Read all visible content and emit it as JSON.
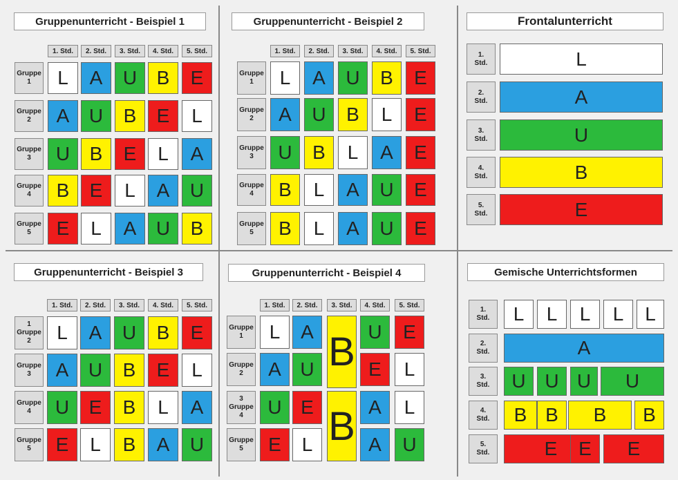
{
  "colors": {
    "W": "#ffffff",
    "B": "#2b9fe0",
    "G": "#2cba3c",
    "Y": "#fff200",
    "R": "#ee1c1c"
  },
  "column_labels": [
    "1. Std.",
    "2. Std.",
    "3. Std.",
    "4. Std.",
    "5. Std."
  ],
  "panel1": {
    "title": "Gruppenunterricht - Beispiel 1",
    "rows": [
      {
        "label": "Gruppe\n1",
        "cells": [
          [
            "L",
            "W"
          ],
          [
            "A",
            "B"
          ],
          [
            "U",
            "G"
          ],
          [
            "B",
            "Y"
          ],
          [
            "E",
            "R"
          ]
        ]
      },
      {
        "label": "Gruppe\n2",
        "cells": [
          [
            "A",
            "B"
          ],
          [
            "U",
            "G"
          ],
          [
            "B",
            "Y"
          ],
          [
            "E",
            "R"
          ],
          [
            "L",
            "W"
          ]
        ]
      },
      {
        "label": "Gruppe\n3",
        "cells": [
          [
            "U",
            "G"
          ],
          [
            "B",
            "Y"
          ],
          [
            "E",
            "R"
          ],
          [
            "L",
            "W"
          ],
          [
            "A",
            "B"
          ]
        ]
      },
      {
        "label": "Gruppe\n4",
        "cells": [
          [
            "B",
            "Y"
          ],
          [
            "E",
            "R"
          ],
          [
            "L",
            "W"
          ],
          [
            "A",
            "B"
          ],
          [
            "U",
            "G"
          ]
        ]
      },
      {
        "label": "Gruppe\n5",
        "cells": [
          [
            "E",
            "R"
          ],
          [
            "L",
            "W"
          ],
          [
            "A",
            "B"
          ],
          [
            "U",
            "G"
          ],
          [
            "B",
            "Y"
          ]
        ]
      }
    ]
  },
  "panel2": {
    "title": "Gruppenunterricht - Beispiel 2",
    "rows": [
      {
        "label": "Gruppe\n1",
        "cells": [
          [
            "L",
            "W"
          ],
          [
            "A",
            "B"
          ],
          [
            "U",
            "G"
          ],
          [
            "B",
            "Y"
          ],
          [
            "E",
            "R"
          ]
        ]
      },
      {
        "label": "Gruppe\n2",
        "cells": [
          [
            "A",
            "B"
          ],
          [
            "U",
            "G"
          ],
          [
            "B",
            "Y"
          ],
          [
            "L",
            "W"
          ],
          [
            "E",
            "R"
          ]
        ]
      },
      {
        "label": "Gruppe\n3",
        "cells": [
          [
            "U",
            "G"
          ],
          [
            "B",
            "Y"
          ],
          [
            "L",
            "W"
          ],
          [
            "A",
            "B"
          ],
          [
            "E",
            "R"
          ]
        ]
      },
      {
        "label": "Gruppe\n4",
        "cells": [
          [
            "B",
            "Y"
          ],
          [
            "L",
            "W"
          ],
          [
            "A",
            "B"
          ],
          [
            "U",
            "G"
          ],
          [
            "E",
            "R"
          ]
        ]
      },
      {
        "label": "Gruppe\n5",
        "cells": [
          [
            "B",
            "Y"
          ],
          [
            "L",
            "W"
          ],
          [
            "A",
            "B"
          ],
          [
            "U",
            "G"
          ],
          [
            "E",
            "R"
          ]
        ]
      }
    ]
  },
  "panel3": {
    "title": "Frontalunterricht",
    "rows": [
      {
        "label": "1.\nStd.",
        "letter": "L",
        "color": "W"
      },
      {
        "label": "2.\nStd.",
        "letter": "A",
        "color": "B"
      },
      {
        "label": "3.\nStd.",
        "letter": "U",
        "color": "G"
      },
      {
        "label": "4.\nStd.",
        "letter": "B",
        "color": "Y"
      },
      {
        "label": "5.\nStd.",
        "letter": "E",
        "color": "R"
      }
    ]
  },
  "panel4": {
    "title": "Gruppenunterricht - Beispiel 3",
    "rows": [
      {
        "label": "1\nGruppe\n2",
        "cells": [
          [
            "L",
            "W"
          ],
          [
            "A",
            "B"
          ],
          [
            "U",
            "G"
          ],
          [
            "B",
            "Y"
          ],
          [
            "E",
            "R"
          ]
        ]
      },
      {
        "label": "Gruppe\n3",
        "cells": [
          [
            "A",
            "B"
          ],
          [
            "U",
            "G"
          ],
          [
            "B",
            "Y"
          ],
          [
            "E",
            "R"
          ],
          [
            "L",
            "W"
          ]
        ]
      },
      {
        "label": "Gruppe\n4",
        "cells": [
          [
            "U",
            "G"
          ],
          [
            "E",
            "R"
          ],
          [
            "B",
            "Y"
          ],
          [
            "L",
            "W"
          ],
          [
            "A",
            "B"
          ]
        ]
      },
      {
        "label": "Gruppe\n5",
        "cells": [
          [
            "E",
            "R"
          ],
          [
            "L",
            "W"
          ],
          [
            "B",
            "Y"
          ],
          [
            "A",
            "B"
          ],
          [
            "U",
            "G"
          ]
        ]
      }
    ]
  },
  "panel5": {
    "title": "Gruppenunterricht - Beispiel 4",
    "rows": [
      {
        "label": "Gruppe\n1",
        "cells": [
          [
            "L",
            "W"
          ],
          [
            "A",
            "B"
          ],
          null,
          [
            "U",
            "G"
          ],
          [
            "E",
            "R"
          ]
        ]
      },
      {
        "label": "Gruppe\n2",
        "cells": [
          [
            "A",
            "B"
          ],
          [
            "U",
            "G"
          ],
          null,
          [
            "E",
            "R"
          ],
          [
            "L",
            "W"
          ]
        ]
      },
      {
        "label": "3\nGruppe\n4",
        "cells": [
          [
            "U",
            "G"
          ],
          [
            "E",
            "R"
          ],
          null,
          [
            "A",
            "B"
          ],
          [
            "L",
            "W"
          ]
        ]
      },
      {
        "label": "Gruppe\n5",
        "cells": [
          [
            "E",
            "R"
          ],
          [
            "L",
            "W"
          ],
          null,
          [
            "A",
            "B"
          ],
          [
            "U",
            "G"
          ]
        ]
      }
    ],
    "big_cells": [
      [
        "B",
        "Y"
      ],
      [
        "B",
        "Y"
      ]
    ]
  },
  "panel6": {
    "title": "Gemische Unterrichtsformen",
    "rows": [
      {
        "label": "1.\nStd.",
        "cells": [
          [
            "L",
            "W"
          ],
          [
            "L",
            "W"
          ],
          [
            "L",
            "W"
          ],
          [
            "L",
            "W"
          ],
          [
            "L",
            "W"
          ]
        ]
      },
      {
        "label": "2.\nStd.",
        "cells": [
          [
            "A",
            "B"
          ]
        ]
      },
      {
        "label": "3.\nStd.",
        "cells": [
          [
            "U",
            "G"
          ],
          [
            "U",
            "G"
          ],
          [
            "U",
            "G"
          ],
          [
            "U",
            "G"
          ]
        ]
      },
      {
        "label": "4.\nStd.",
        "cells": [
          [
            "B",
            "Y"
          ],
          [
            "B",
            "Y"
          ],
          [
            "B",
            "Y"
          ],
          [
            "B",
            "Y"
          ]
        ]
      },
      {
        "label": "5.\nStd.",
        "cells": [
          [
            "E",
            "R"
          ],
          [
            "E",
            "R"
          ],
          [
            "E",
            "R"
          ]
        ]
      }
    ]
  }
}
